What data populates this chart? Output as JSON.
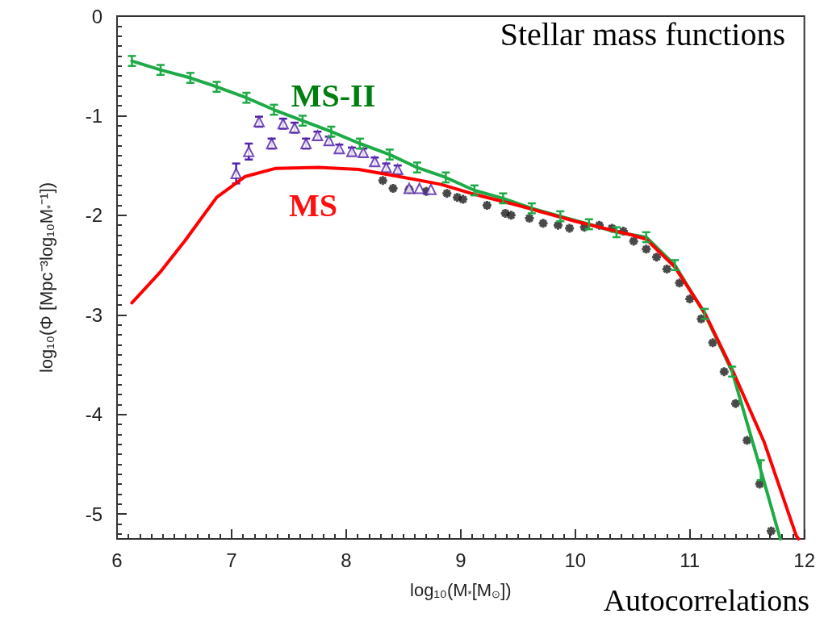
{
  "chart_data": {
    "type": "line",
    "title": "Stellar mass functions",
    "xlabel": "log₁₀(M$_{*}$[M$_{⊙}$])",
    "ylabel": "log₁₀(Φ [Mpc⁻³log₁₀M$_{*}$⁻¹])",
    "xlim": [
      6,
      12
    ],
    "xticks": [
      6,
      7,
      8,
      9,
      10,
      11,
      12
    ],
    "ylim": [
      -5.25,
      0
    ],
    "yticks": [
      -5,
      -4,
      -3,
      -2,
      -1,
      0
    ],
    "annotations": [
      "Autocorrelations"
    ],
    "series": [
      {
        "name": "MS-II",
        "color": "#1eaa46",
        "marker": "none",
        "x": [
          6.13,
          6.38,
          6.64,
          6.87,
          7.13,
          7.37,
          7.62,
          7.87,
          8.12,
          8.38,
          8.62,
          8.87,
          9.12,
          9.37,
          9.62,
          9.87,
          10.12,
          10.36,
          10.62,
          10.87,
          11.13,
          11.37,
          11.62,
          11.79
        ],
        "values": [
          -0.45,
          -0.54,
          -0.62,
          -0.71,
          -0.82,
          -0.94,
          -1.05,
          -1.16,
          -1.28,
          -1.39,
          -1.52,
          -1.62,
          -1.75,
          -1.83,
          -1.93,
          -2.01,
          -2.09,
          -2.17,
          -2.22,
          -2.5,
          -2.99,
          -3.57,
          -4.56,
          -5.25
        ],
        "errors": [
          0.05,
          0.05,
          0.05,
          0.05,
          0.05,
          0.05,
          0.05,
          0.05,
          0.05,
          0.05,
          0.05,
          0.05,
          0.05,
          0.05,
          0.05,
          0.05,
          0.05,
          0.05,
          0.05,
          0.05,
          0.05,
          0.05,
          0.1,
          null
        ]
      },
      {
        "name": "MS",
        "color": "#ff0000",
        "marker": "none",
        "x": [
          6.13,
          6.37,
          6.59,
          6.87,
          7.12,
          7.38,
          7.76,
          8.11,
          8.46,
          8.83,
          9.09,
          9.5,
          10.0,
          10.5,
          10.62,
          10.87,
          11.13,
          11.37,
          11.65,
          11.93,
          11.95
        ],
        "values": [
          -2.88,
          -2.58,
          -2.26,
          -1.82,
          -1.61,
          -1.53,
          -1.52,
          -1.54,
          -1.61,
          -1.69,
          -1.78,
          -1.9,
          -2.06,
          -2.2,
          -2.24,
          -2.52,
          -2.98,
          -3.55,
          -4.28,
          -5.22,
          -5.25
        ]
      },
      {
        "type": "scatter",
        "color": "#5222a8",
        "marker": "triangle",
        "x": [
          7.04,
          7.15,
          7.24,
          7.35,
          7.45,
          7.55,
          7.65,
          7.75,
          7.85,
          7.94,
          8.05,
          8.15,
          8.25,
          8.35,
          8.45,
          8.55,
          8.64,
          8.74
        ],
        "values": [
          -1.58,
          -1.36,
          -1.06,
          -1.28,
          -1.08,
          -1.12,
          -1.28,
          -1.2,
          -1.25,
          -1.33,
          -1.36,
          -1.37,
          -1.46,
          -1.52,
          -1.54,
          -1.73,
          -1.73,
          -1.74
        ],
        "errors": [
          0.1,
          0.08,
          0.05,
          0.05,
          0.05,
          0.05,
          0.05,
          0.04,
          0.04,
          0.04,
          0.04,
          0.04,
          0.04,
          0.04,
          0.04,
          null,
          null,
          null
        ]
      },
      {
        "type": "scatter",
        "color": "#1a1a1a",
        "marker": "cross",
        "x": [
          8.32,
          8.41,
          8.55,
          8.7,
          8.88,
          8.97,
          9.02,
          9.23,
          9.39,
          9.44,
          9.6,
          9.72,
          9.85,
          9.95,
          10.08,
          10.21,
          10.32,
          10.42,
          10.51,
          10.62,
          10.71,
          10.8,
          10.91,
          11.0,
          11.1,
          11.2,
          11.3,
          11.4,
          11.5,
          11.61,
          11.71
        ],
        "values": [
          -1.65,
          -1.73,
          -1.74,
          -1.76,
          -1.78,
          -1.82,
          -1.84,
          -1.9,
          -1.98,
          -2.0,
          -2.03,
          -2.08,
          -2.1,
          -2.13,
          -2.12,
          -2.1,
          -2.13,
          -2.16,
          -2.26,
          -2.34,
          -2.42,
          -2.54,
          -2.68,
          -2.84,
          -3.04,
          -3.28,
          -3.57,
          -3.89,
          -4.26,
          -4.7,
          -5.17
        ]
      }
    ]
  }
}
